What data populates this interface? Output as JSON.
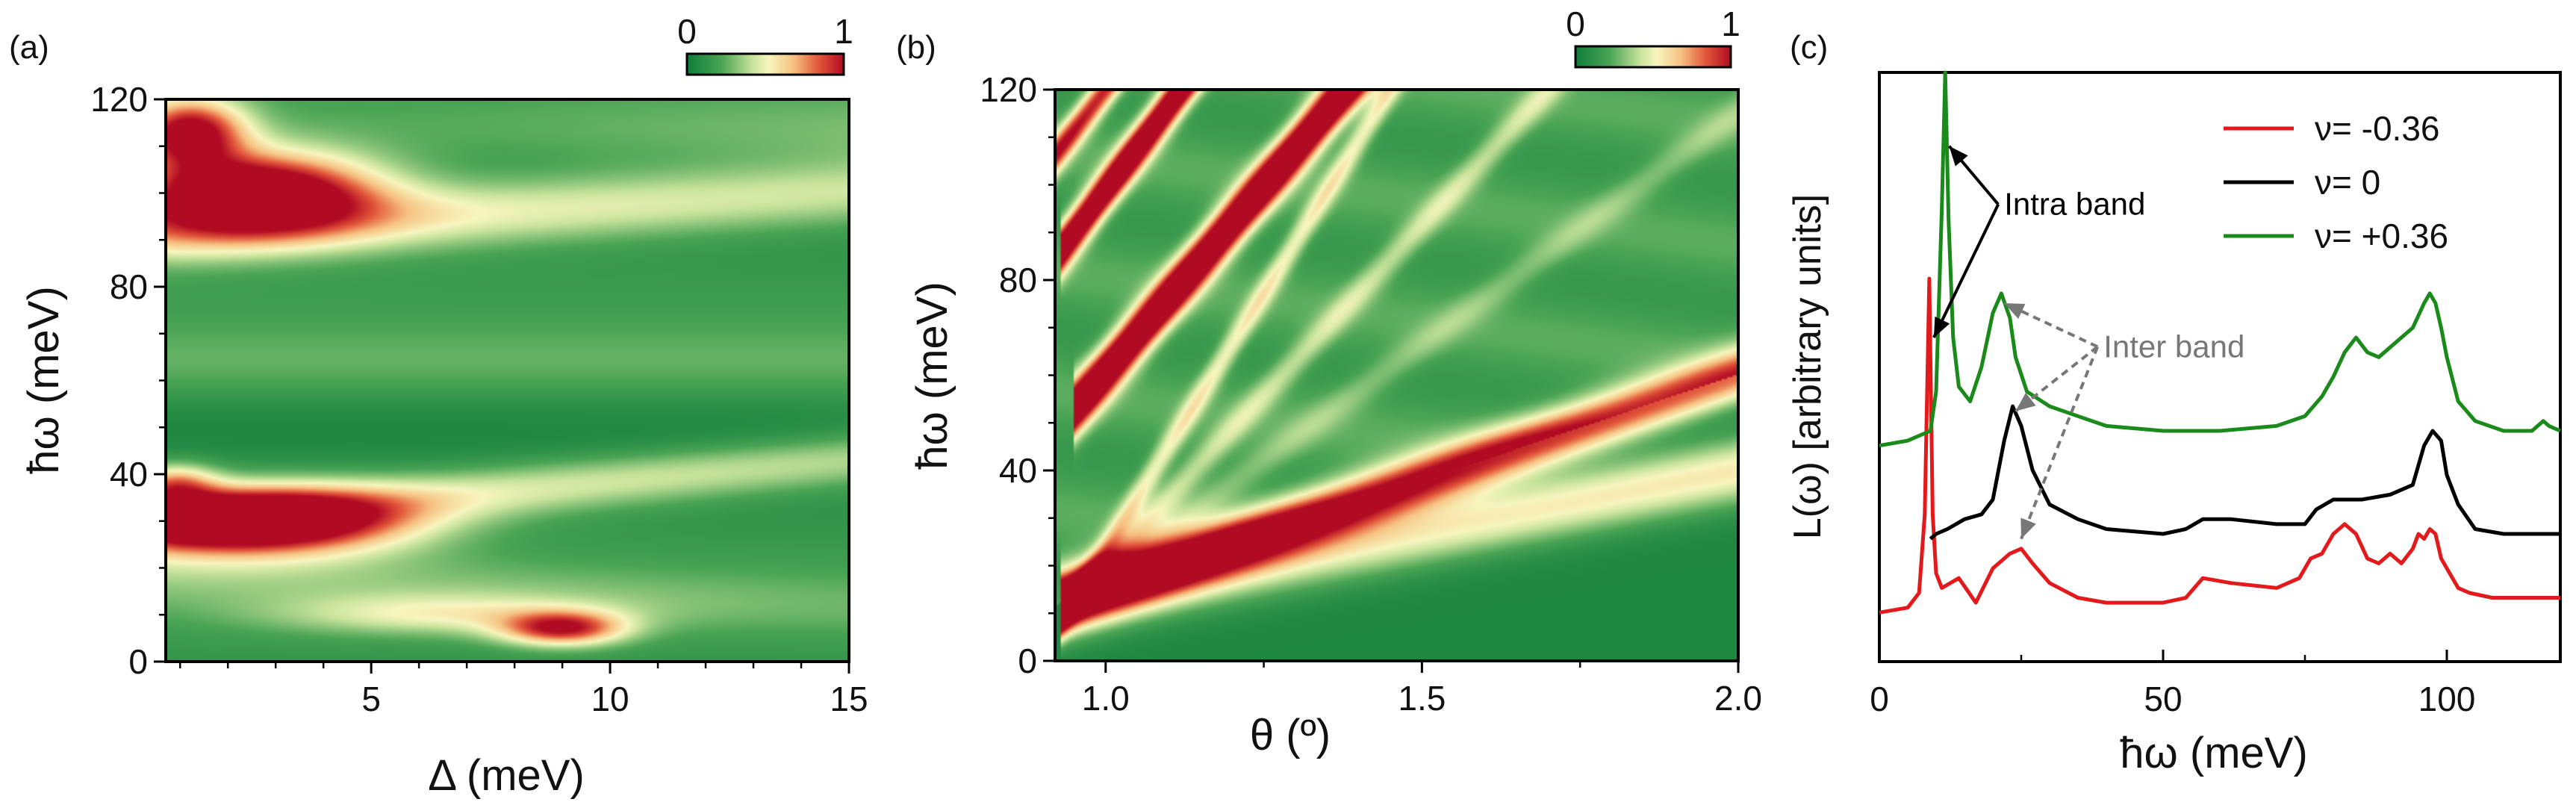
{
  "chart_data": [
    {
      "panel": "(a)",
      "type": "heatmap",
      "xlabel": "Δ (meV)",
      "ylabel": "ħω (meV)",
      "xlim": [
        0.7,
        15
      ],
      "ylim": [
        0,
        120
      ],
      "xticks": [
        5,
        10,
        15
      ],
      "yticks": [
        0,
        40,
        80,
        120
      ],
      "colorbar": {
        "min_label": "0",
        "max_label": "1",
        "colors": [
          "#0e7c3a",
          "#f7f6bf",
          "#b10b23"
        ]
      },
      "features": [
        {
          "kind": "blob",
          "x": 2.5,
          "y": 100,
          "sx": 1.8,
          "sy": 6,
          "w": 1.2
        },
        {
          "kind": "blob",
          "x": 1.2,
          "y": 113,
          "sx": 0.8,
          "sy": 5,
          "w": 0.9
        },
        {
          "kind": "blob",
          "x": 2.5,
          "y": 30,
          "sx": 2.2,
          "sy": 5,
          "w": 1.2
        },
        {
          "kind": "blob",
          "x": 0.9,
          "y": 38,
          "sx": 0.6,
          "sy": 3,
          "w": 0.5
        },
        {
          "kind": "blob",
          "x": 9.0,
          "y": 7,
          "sx": 0.9,
          "sy": 2.5,
          "w": 0.75
        },
        {
          "kind": "blob",
          "x": 6.5,
          "y": 10,
          "sx": 2.5,
          "sy": 3,
          "w": 0.3
        },
        {
          "kind": "band",
          "y0": 92,
          "y1": 100,
          "x0": 1.0,
          "x1": 15.0,
          "w0": 0.45,
          "w1": 0.32,
          "sy": 5
        },
        {
          "kind": "band",
          "y0": 30,
          "y1": 43,
          "x0": 1.0,
          "x1": 15.0,
          "w0": 0.4,
          "w1": 0.3,
          "sy": 4
        },
        {
          "kind": "band",
          "y0": 63,
          "y1": 63,
          "x0": 1.0,
          "x1": 15.0,
          "w0": 0.1,
          "w1": 0.1,
          "sy": 6
        },
        {
          "kind": "band",
          "y0": 113,
          "y1": 113,
          "x0": 1.0,
          "x1": 15.0,
          "w0": 0.05,
          "w1": 0.15,
          "sy": 6
        },
        {
          "kind": "band",
          "y0": 18,
          "y1": 12,
          "x0": 1.0,
          "x1": 15.0,
          "w0": 0.15,
          "w1": 0.1,
          "sy": 5
        }
      ]
    },
    {
      "panel": "(b)",
      "type": "heatmap",
      "xlabel": "θ (º)",
      "ylabel": "ħω (meV)",
      "xlim": [
        0.92,
        2.0
      ],
      "ylim": [
        0,
        120
      ],
      "xticks": [
        1.0,
        1.5,
        2.0
      ],
      "yticks": [
        0,
        40,
        80,
        120
      ],
      "colorbar": {
        "min_label": "0",
        "max_label": "1",
        "colors": [
          "#0e7c3a",
          "#f7f6bf",
          "#b10b23"
        ]
      },
      "features": [
        {
          "kind": "line",
          "x0": 0.95,
          "y0": 13,
          "x1": 2.0,
          "y1": 60,
          "w0": 1.1,
          "w1": 0.75,
          "sy": 4
        },
        {
          "kind": "line",
          "x0": 0.95,
          "y0": 13,
          "x1": 2.0,
          "y1": 40,
          "w0": 0.45,
          "w1": 0.5,
          "sy": 5
        },
        {
          "kind": "line",
          "x0": 0.97,
          "y0": 56,
          "x1": 1.38,
          "y1": 120,
          "w0": 1.3,
          "w1": 1.3,
          "sy": 4
        },
        {
          "kind": "line",
          "x0": 0.95,
          "y0": 90,
          "x1": 1.12,
          "y1": 120,
          "w0": 1.2,
          "w1": 1.2,
          "sy": 3.5
        },
        {
          "kind": "line",
          "x0": 0.93,
          "y0": 108,
          "x1": 1.0,
          "y1": 120,
          "w0": 0.8,
          "w1": 0.8,
          "sy": 3
        },
        {
          "kind": "line",
          "x0": 0.95,
          "y0": 13,
          "x1": 1.45,
          "y1": 120,
          "w0": 0.35,
          "w1": 0.35,
          "sy": 3
        },
        {
          "kind": "line",
          "x0": 0.95,
          "y0": 13,
          "x1": 1.7,
          "y1": 120,
          "w0": 0.25,
          "w1": 0.25,
          "sy": 3
        },
        {
          "kind": "line",
          "x0": 0.95,
          "y0": 13,
          "x1": 2.0,
          "y1": 115,
          "w0": 0.15,
          "w1": 0.15,
          "sy": 3
        }
      ]
    },
    {
      "panel": "(c)",
      "type": "line",
      "xlabel": "ħω (meV)",
      "ylabel": "L(ω) [arbitrary units]",
      "xlim": [
        0,
        120
      ],
      "ylim": [
        0,
        1.2
      ],
      "xticks": [
        0,
        50,
        100
      ],
      "legend_position": "top-right",
      "series": [
        {
          "name": "ν= -0.36",
          "color": "#e31a1c",
          "x": [
            0,
            5,
            7,
            8,
            8.8,
            9.4,
            10,
            11,
            14,
            17,
            20,
            23,
            25,
            27,
            30,
            35,
            40,
            50,
            54,
            57,
            62,
            70,
            74,
            76,
            78,
            80,
            82,
            84,
            86,
            88,
            90,
            92,
            94,
            95,
            96,
            97,
            98,
            99,
            100,
            102,
            104,
            108,
            112,
            116,
            120
          ],
          "y": [
            0.1,
            0.11,
            0.14,
            0.3,
            0.78,
            0.3,
            0.18,
            0.15,
            0.17,
            0.12,
            0.19,
            0.22,
            0.23,
            0.2,
            0.16,
            0.13,
            0.12,
            0.12,
            0.13,
            0.17,
            0.16,
            0.15,
            0.17,
            0.21,
            0.22,
            0.26,
            0.28,
            0.26,
            0.21,
            0.2,
            0.22,
            0.2,
            0.23,
            0.26,
            0.25,
            0.27,
            0.26,
            0.21,
            0.19,
            0.15,
            0.14,
            0.13,
            0.13,
            0.13,
            0.13
          ]
        },
        {
          "name": "ν= 0",
          "color": "#000000",
          "x": [
            9,
            10,
            12,
            15,
            18,
            20,
            22,
            23.5,
            25,
            27,
            30,
            35,
            40,
            50,
            54,
            57,
            62,
            70,
            75,
            77,
            80,
            85,
            90,
            94,
            96,
            97.5,
            99,
            100,
            102,
            105,
            110,
            115,
            120
          ],
          "y": [
            0.25,
            0.26,
            0.27,
            0.29,
            0.3,
            0.33,
            0.45,
            0.52,
            0.48,
            0.39,
            0.32,
            0.29,
            0.27,
            0.26,
            0.27,
            0.29,
            0.29,
            0.28,
            0.28,
            0.31,
            0.33,
            0.33,
            0.34,
            0.36,
            0.44,
            0.47,
            0.45,
            0.38,
            0.32,
            0.27,
            0.26,
            0.26,
            0.26
          ]
        },
        {
          "name": "ν= +0.36",
          "color": "#1a8a1a",
          "x": [
            0,
            5,
            9,
            10,
            11,
            11.6,
            12.2,
            13,
            14,
            16,
            18,
            20,
            21.5,
            23,
            24,
            26,
            30,
            35,
            40,
            50,
            60,
            70,
            75,
            78,
            80,
            82,
            84,
            86,
            88,
            90,
            92,
            94,
            96,
            97,
            98,
            99,
            100,
            102,
            105,
            110,
            115,
            117,
            118,
            120
          ],
          "y": [
            0.44,
            0.45,
            0.47,
            0.55,
            0.92,
            1.2,
            0.9,
            0.66,
            0.56,
            0.53,
            0.6,
            0.71,
            0.75,
            0.7,
            0.62,
            0.55,
            0.52,
            0.5,
            0.48,
            0.47,
            0.47,
            0.48,
            0.5,
            0.54,
            0.58,
            0.63,
            0.66,
            0.63,
            0.62,
            0.64,
            0.66,
            0.68,
            0.73,
            0.75,
            0.73,
            0.68,
            0.62,
            0.53,
            0.49,
            0.47,
            0.47,
            0.49,
            0.48,
            0.47
          ]
        }
      ],
      "annotations": [
        {
          "text": "Intra band",
          "color": "#000000",
          "text_x": 22,
          "text_y": 0.91,
          "targets": [
            [
              12.3,
              1.05
            ],
            [
              9.6,
              0.66
            ]
          ]
        },
        {
          "text": "Inter band",
          "color": "#777777",
          "text_x": 39.5,
          "text_y": 0.62,
          "targets": [
            [
              22,
              0.73
            ],
            [
              24,
              0.51
            ],
            [
              25,
              0.25
            ]
          ]
        }
      ]
    }
  ],
  "panel_labels": [
    "(a)",
    "(b)",
    "(c)"
  ]
}
